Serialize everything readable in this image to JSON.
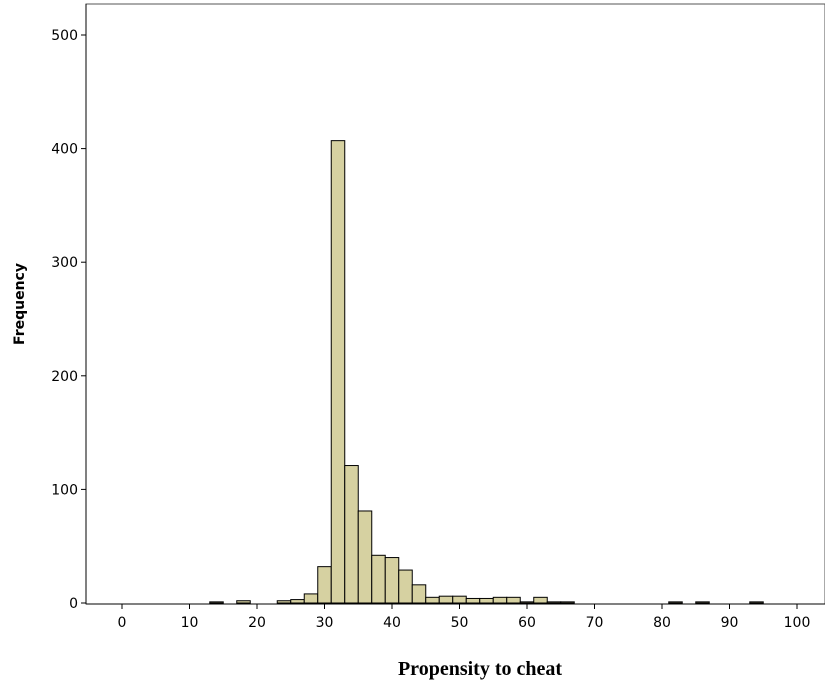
{
  "chart_data": {
    "type": "bar",
    "title": "",
    "xlabel": "Propensity to cheat",
    "ylabel": "Frequency",
    "xlim": [
      -5,
      105
    ],
    "ylim": [
      0,
      520
    ],
    "grid": false,
    "bin_width": 2,
    "x_ticks": [
      0,
      10,
      20,
      30,
      40,
      50,
      60,
      70,
      80,
      90,
      100
    ],
    "y_ticks": [
      0,
      100,
      200,
      300,
      400,
      500
    ],
    "bar_color": "#d6d1a1",
    "bar_edge_color": "#000000",
    "bins": [
      {
        "start": 13,
        "end": 15,
        "value": 1
      },
      {
        "start": 17,
        "end": 19,
        "value": 2
      },
      {
        "start": 23,
        "end": 25,
        "value": 2
      },
      {
        "start": 25,
        "end": 27,
        "value": 3
      },
      {
        "start": 27,
        "end": 29,
        "value": 8
      },
      {
        "start": 29,
        "end": 31,
        "value": 32
      },
      {
        "start": 31,
        "end": 33,
        "value": 407
      },
      {
        "start": 33,
        "end": 35,
        "value": 121
      },
      {
        "start": 35,
        "end": 37,
        "value": 81
      },
      {
        "start": 37,
        "end": 39,
        "value": 42
      },
      {
        "start": 39,
        "end": 41,
        "value": 40
      },
      {
        "start": 41,
        "end": 43,
        "value": 29
      },
      {
        "start": 43,
        "end": 45,
        "value": 16
      },
      {
        "start": 45,
        "end": 47,
        "value": 5
      },
      {
        "start": 47,
        "end": 49,
        "value": 6
      },
      {
        "start": 49,
        "end": 51,
        "value": 6
      },
      {
        "start": 51,
        "end": 53,
        "value": 4
      },
      {
        "start": 53,
        "end": 55,
        "value": 4
      },
      {
        "start": 55,
        "end": 57,
        "value": 5
      },
      {
        "start": 57,
        "end": 59,
        "value": 5
      },
      {
        "start": 59,
        "end": 61,
        "value": 1
      },
      {
        "start": 61,
        "end": 63,
        "value": 5
      },
      {
        "start": 63,
        "end": 65,
        "value": 1
      },
      {
        "start": 65,
        "end": 67,
        "value": 1
      },
      {
        "start": 81,
        "end": 83,
        "value": 1
      },
      {
        "start": 85,
        "end": 87,
        "value": 1
      },
      {
        "start": 93,
        "end": 95,
        "value": 1
      }
    ]
  }
}
